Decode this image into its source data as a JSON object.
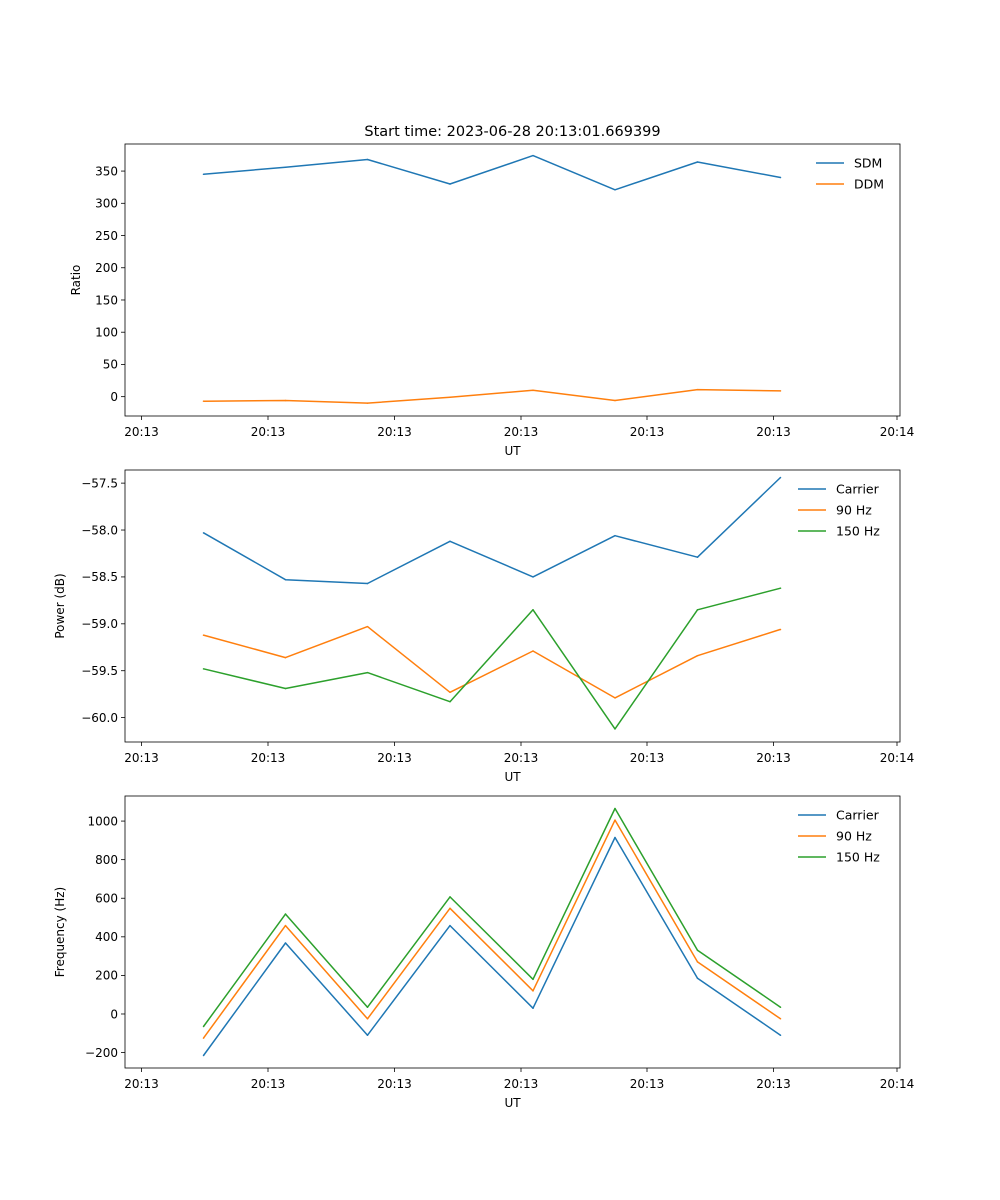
{
  "title": "Start time: 2023-06-28 20:13:01.669399",
  "chart_data": [
    {
      "type": "line",
      "title": "Start time: 2023-06-28 20:13:01.669399",
      "xlabel": "UT",
      "ylabel": "Ratio",
      "x_tick_labels": [
        "20:13",
        "20:13",
        "20:13",
        "20:13",
        "20:13",
        "20:13",
        "20:14"
      ],
      "y_ticks": [
        0,
        50,
        100,
        150,
        200,
        250,
        300,
        350
      ],
      "ylim": [
        -30,
        392
      ],
      "legend": "top-right",
      "grid": false,
      "series": [
        {
          "name": "SDM",
          "color": "#1f77b4",
          "values": [
            345,
            356,
            368,
            330,
            374,
            321,
            364,
            340
          ]
        },
        {
          "name": "DDM",
          "color": "#ff7f0e",
          "values": [
            -7,
            -6,
            -10,
            -1,
            10,
            -6,
            11,
            9
          ]
        }
      ]
    },
    {
      "type": "line",
      "xlabel": "UT",
      "ylabel": "Power (dB)",
      "x_tick_labels": [
        "20:13",
        "20:13",
        "20:13",
        "20:13",
        "20:13",
        "20:13",
        "20:14"
      ],
      "y_ticks": [
        -60.0,
        -59.5,
        -59.0,
        -58.5,
        -58.0,
        -57.5
      ],
      "y_tick_labels": [
        "−60.0",
        "−59.5",
        "−59.0",
        "−58.5",
        "−58.0",
        "−57.5"
      ],
      "ylim": [
        -60.26,
        -57.36
      ],
      "legend": "top-right",
      "grid": false,
      "series": [
        {
          "name": "Carrier",
          "color": "#1f77b4",
          "values": [
            -58.03,
            -58.53,
            -58.57,
            -58.12,
            -58.5,
            -58.06,
            -58.29,
            -57.44
          ]
        },
        {
          "name": "90 Hz",
          "color": "#ff7f0e",
          "values": [
            -59.12,
            -59.36,
            -59.03,
            -59.73,
            -59.29,
            -59.79,
            -59.34,
            -59.06
          ]
        },
        {
          "name": "150 Hz",
          "color": "#2ca02c",
          "values": [
            -59.48,
            -59.69,
            -59.52,
            -59.83,
            -58.85,
            -60.12,
            -58.85,
            -58.62
          ]
        }
      ]
    },
    {
      "type": "line",
      "xlabel": "UT",
      "ylabel": "Frequency (Hz)",
      "x_tick_labels": [
        "20:13",
        "20:13",
        "20:13",
        "20:13",
        "20:13",
        "20:13",
        "20:14"
      ],
      "y_ticks": [
        -200,
        0,
        200,
        400,
        600,
        800,
        1000
      ],
      "y_tick_labels": [
        "−200",
        "0",
        "200",
        "400",
        "600",
        "800",
        "1000"
      ],
      "ylim": [
        -280,
        1130
      ],
      "legend": "top-right",
      "grid": false,
      "series": [
        {
          "name": "Carrier",
          "color": "#1f77b4",
          "values": [
            -215,
            368,
            -110,
            458,
            30,
            915,
            185,
            -110
          ]
        },
        {
          "name": "90 Hz",
          "color": "#ff7f0e",
          "values": [
            -125,
            458,
            -25,
            548,
            120,
            1005,
            270,
            -25
          ]
        },
        {
          "name": "150 Hz",
          "color": "#2ca02c",
          "values": [
            -65,
            518,
            35,
            607,
            180,
            1065,
            330,
            35
          ]
        }
      ]
    }
  ]
}
